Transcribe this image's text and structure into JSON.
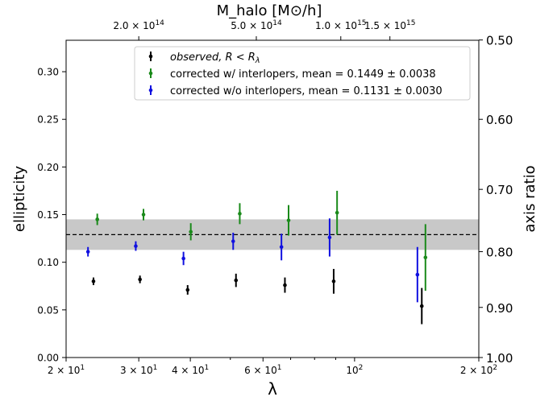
{
  "chart_data": {
    "type": "scatter",
    "xscale": "log",
    "xlim": [
      20,
      200
    ],
    "ylim": [
      0,
      0.333
    ],
    "xlabel": "λ",
    "ylabel": "ellipticity",
    "right_ylabel": "axis ratio",
    "top_xlabel": "M_halo [M⊙/h]",
    "x_ticks": [
      {
        "value": 20,
        "base": "2 × 10",
        "exp": "1"
      },
      {
        "value": 30,
        "base": "3 × 10",
        "exp": "1"
      },
      {
        "value": 40,
        "base": "4 × 10",
        "exp": "1"
      },
      {
        "value": 60,
        "base": "6 × 10",
        "exp": "1"
      },
      {
        "value": 100,
        "base": "10",
        "exp": "2"
      },
      {
        "value": 200,
        "base": "2 × 10",
        "exp": "2"
      }
    ],
    "y_ticks": [
      {
        "value": 0.0,
        "label": "0.00"
      },
      {
        "value": 0.05,
        "label": "0.05"
      },
      {
        "value": 0.1,
        "label": "0.10"
      },
      {
        "value": 0.15,
        "label": "0.15"
      },
      {
        "value": 0.2,
        "label": "0.20"
      },
      {
        "value": 0.25,
        "label": "0.25"
      },
      {
        "value": 0.3,
        "label": "0.30"
      }
    ],
    "right_ticks": [
      {
        "ellipticity": 0.0,
        "label": "1.00"
      },
      {
        "ellipticity": 0.0526,
        "label": "0.90"
      },
      {
        "ellipticity": 0.1111,
        "label": "0.80"
      },
      {
        "ellipticity": 0.1765,
        "label": "0.70"
      },
      {
        "ellipticity": 0.25,
        "label": "0.60"
      },
      {
        "ellipticity": 0.3333,
        "label": "0.50"
      }
    ],
    "top_ticks": [
      {
        "lambda": 30.0,
        "base": "2.0 × 10",
        "exp": "14"
      },
      {
        "lambda": 57.8,
        "base": "5.0 × 10",
        "exp": "14"
      },
      {
        "lambda": 92.6,
        "base": "1.0 × 10",
        "exp": "15"
      },
      {
        "lambda": 121.8,
        "base": "1.5 × 10",
        "exp": "15"
      }
    ],
    "series": [
      {
        "name": "observed, R < R_λ",
        "color": "#000000",
        "points": [
          {
            "x": 23.3,
            "y": 0.08,
            "err": 0.004
          },
          {
            "x": 30.2,
            "y": 0.082,
            "err": 0.004
          },
          {
            "x": 39.4,
            "y": 0.071,
            "err": 0.005
          },
          {
            "x": 51.6,
            "y": 0.081,
            "err": 0.007
          },
          {
            "x": 67.8,
            "y": 0.076,
            "err": 0.008
          },
          {
            "x": 89.0,
            "y": 0.08,
            "err": 0.013
          },
          {
            "x": 145.5,
            "y": 0.054,
            "err": 0.019
          }
        ]
      },
      {
        "name": "corrected w/ interlopers, mean = 0.1449 ± 0.0038",
        "color": "#1a8a1a",
        "points": [
          {
            "x": 23.8,
            "y": 0.145,
            "err": 0.006
          },
          {
            "x": 30.8,
            "y": 0.15,
            "err": 0.006
          },
          {
            "x": 40.1,
            "y": 0.132,
            "err": 0.009
          },
          {
            "x": 52.7,
            "y": 0.151,
            "err": 0.011
          },
          {
            "x": 69.2,
            "y": 0.144,
            "err": 0.016
          },
          {
            "x": 90.7,
            "y": 0.152,
            "err": 0.023
          },
          {
            "x": 148.5,
            "y": 0.105,
            "err": 0.035
          }
        ]
      },
      {
        "name": "corrected w/o interlopers, mean = 0.1131 ± 0.0030",
        "color": "#1010e0",
        "points": [
          {
            "x": 22.6,
            "y": 0.111,
            "err": 0.005
          },
          {
            "x": 29.5,
            "y": 0.117,
            "err": 0.005
          },
          {
            "x": 38.5,
            "y": 0.104,
            "err": 0.007
          },
          {
            "x": 50.8,
            "y": 0.122,
            "err": 0.009
          },
          {
            "x": 66.5,
            "y": 0.116,
            "err": 0.014
          },
          {
            "x": 87.0,
            "y": 0.126,
            "err": 0.02
          },
          {
            "x": 142.0,
            "y": 0.087,
            "err": 0.029
          }
        ]
      }
    ],
    "reference_line": {
      "y": 0.129,
      "style": "dashed"
    },
    "band": {
      "y_low": 0.113,
      "y_high": 0.145,
      "color": "#c8c8c8"
    },
    "legend": {
      "placement": "top-center",
      "entries": [
        {
          "kind": "observed",
          "text": "observed, R < R",
          "sub": "λ"
        },
        {
          "kind": "with",
          "text": "corrected w/ interlopers, mean = 0.1449 ± 0.0038"
        },
        {
          "kind": "without",
          "text": "corrected w/o interlopers, mean = 0.1131 ± 0.0030"
        }
      ]
    },
    "grid": false
  }
}
